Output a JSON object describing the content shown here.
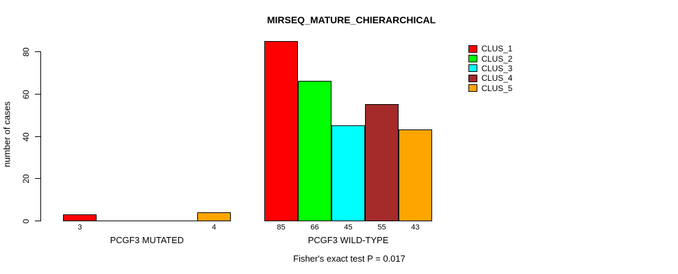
{
  "chart_data": {
    "type": "bar",
    "title": "MIRSEQ_MATURE_CHIERARCHICAL",
    "xlabel": "",
    "ylabel": "number of cases",
    "ylim": [
      0,
      85
    ],
    "yticks": [
      0,
      20,
      40,
      60,
      80
    ],
    "grid": false,
    "legend_position": "top-right",
    "categories": [
      "PCGF3 MUTATED",
      "PCGF3 WILD-TYPE"
    ],
    "series": [
      {
        "name": "CLUS_1",
        "color": "#ff0000",
        "values": [
          3,
          85
        ]
      },
      {
        "name": "CLUS_2",
        "color": "#00ff00",
        "values": [
          0,
          66
        ]
      },
      {
        "name": "CLUS_3",
        "color": "#00ffff",
        "values": [
          0,
          45
        ]
      },
      {
        "name": "CLUS_4",
        "color": "#a52a2a",
        "values": [
          0,
          55
        ]
      },
      {
        "name": "CLUS_5",
        "color": "#ffa500",
        "values": [
          4,
          43
        ]
      }
    ],
    "bar_labels": [
      [
        "3",
        "",
        "",
        "",
        "4"
      ],
      [
        "85",
        "66",
        "45",
        "55",
        "43"
      ]
    ],
    "annotation": "Fisher's exact test P = 0.017"
  }
}
